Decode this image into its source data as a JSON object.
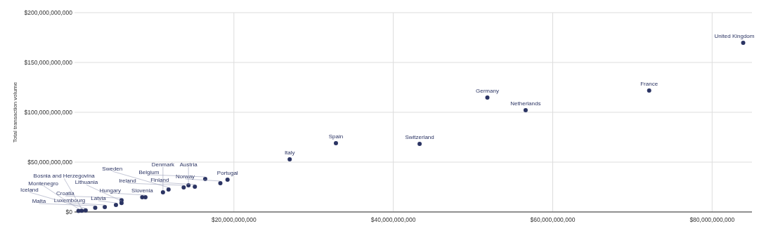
{
  "chart_data": {
    "type": "scatter",
    "ylabel": "Total transaction volume",
    "color": "#2b3463",
    "marker": "circle",
    "grid": true,
    "xlim": [
      0,
      85000000000
    ],
    "ylim": [
      0,
      200000000000
    ],
    "xticks": [
      {
        "value": 20000000000,
        "label": "$20,000,000,000"
      },
      {
        "value": 40000000000,
        "label": "$40,000,000,000"
      },
      {
        "value": 60000000000,
        "label": "$60,000,000,000"
      },
      {
        "value": 80000000000,
        "label": "$80,000,000,000"
      }
    ],
    "yticks": [
      {
        "value": 0,
        "label": "$0"
      },
      {
        "value": 50000000000,
        "label": "$50,000,000,000"
      },
      {
        "value": 100000000000,
        "label": "$100,000,000,000"
      },
      {
        "value": 150000000000,
        "label": "$150,000,000,000"
      },
      {
        "value": 200000000000,
        "label": "$200,000,000,000"
      }
    ],
    "x": [
      83900000000,
      72100000000,
      51800000000,
      56600000000,
      43300000000,
      32800000000,
      27000000000,
      19200000000,
      18300000000,
      16400000000,
      14300000000,
      15100000000,
      13700000000,
      11800000000,
      11100000000,
      8500000000,
      8900000000,
      5900000000,
      5900000000,
      5200000000,
      3800000000,
      2600000000,
      1400000000,
      500000000,
      900000000
    ],
    "values": [
      169700000000,
      121800000000,
      114800000000,
      102100000000,
      68300000000,
      69000000000,
      52800000000,
      32400000000,
      28900000000,
      33100000000,
      26800000000,
      25400000000,
      24600000000,
      22500000000,
      19700000000,
      14800000000,
      14800000000,
      11800000000,
      8900000000,
      7000000000,
      4900000000,
      4200000000,
      1500000000,
      1000000000,
      1200000000
    ],
    "annotations": [
      {
        "text": "United Kingdom",
        "x": 83900000000,
        "y": 169700000000
      },
      {
        "text": "France",
        "x": 72100000000,
        "y": 121800000000
      },
      {
        "text": "Germany",
        "x": 51800000000,
        "y": 114800000000
      },
      {
        "text": "Netherlands",
        "x": 56600000000,
        "y": 102100000000
      },
      {
        "text": "Switzerland",
        "x": 43300000000,
        "y": 68300000000
      },
      {
        "text": "Spain",
        "x": 32800000000,
        "y": 69000000000
      },
      {
        "text": "Italy",
        "x": 27000000000,
        "y": 52800000000
      },
      {
        "text": "Portugal",
        "x": 19200000000,
        "y": 32400000000
      },
      {
        "text": "Norway",
        "x": 18300000000,
        "y": 28900000000
      },
      {
        "text": "Belgium",
        "x": 16400000000,
        "y": 33100000000
      },
      {
        "text": "Austria",
        "x": 14300000000,
        "y": 26800000000
      },
      {
        "text": "Finland",
        "x": 15100000000,
        "y": 25400000000
      },
      {
        "text": "Ireland",
        "x": 13700000000,
        "y": 24600000000
      },
      {
        "text": "Sweden",
        "x": 11800000000,
        "y": 22500000000
      },
      {
        "text": "Denmark",
        "x": 11100000000,
        "y": 19700000000
      },
      {
        "text": "Slovenia",
        "x": 8500000000,
        "y": 14800000000
      },
      {
        "text": "Hungary",
        "x": 8900000000,
        "y": 14800000000
      },
      {
        "text": "Croatia",
        "x": 5900000000,
        "y": 11800000000
      },
      {
        "text": "Lithuania",
        "x": 5900000000,
        "y": 8900000000
      },
      {
        "text": "Latvia",
        "x": 5200000000,
        "y": 7000000000
      },
      {
        "text": "Luxembourg",
        "x": 3800000000,
        "y": 4900000000
      },
      {
        "text": "Malta",
        "x": 2600000000,
        "y": 4200000000
      },
      {
        "text": "Iceland",
        "x": 1400000000,
        "y": 1500000000
      },
      {
        "text": "Montenegro",
        "x": 500000000,
        "y": 1000000000
      },
      {
        "text": "Bosnia and Herzegovina",
        "x": 900000000,
        "y": 1200000000
      }
    ]
  }
}
